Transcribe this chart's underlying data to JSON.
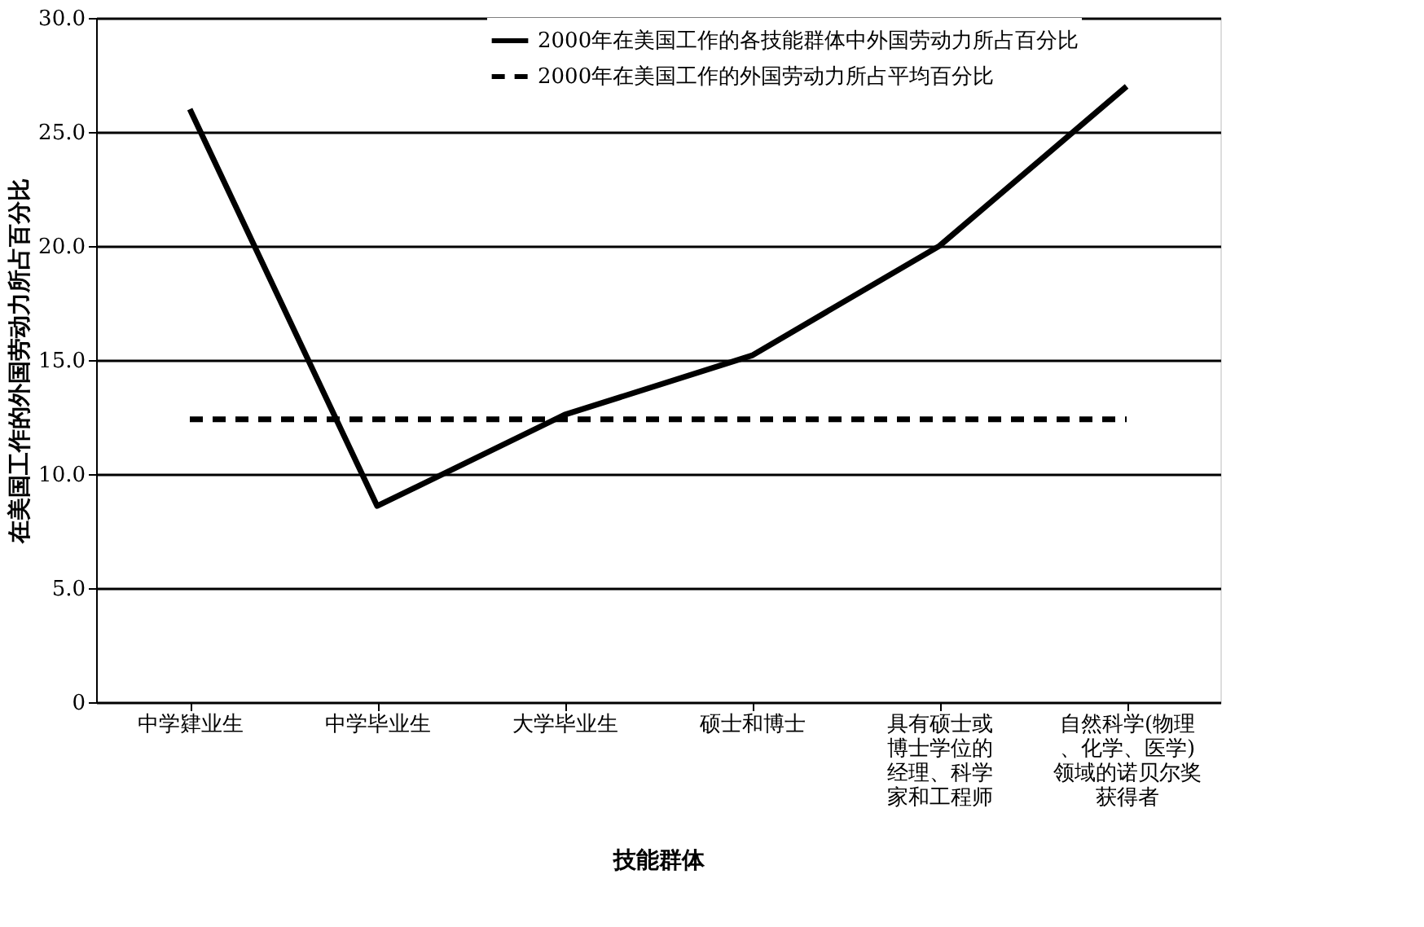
{
  "chart_data": {
    "type": "line",
    "xlabel": "技能群体",
    "ylabel": "在美国工作的外国劳动力所占百分比",
    "categories": [
      "中学肄业生",
      "中学毕业生",
      "大学毕业生",
      "硕士和博士",
      "具有硕士或博士学位的经理、科学家和工程师",
      "自然科学(物理、化学、医学)领域的诺贝尔奖获得者"
    ],
    "series": [
      {
        "name": "2000年在美国工作的各技能群体中外国劳动力所占百分比",
        "color": "#000000",
        "line_style": "solid",
        "values": [
          26.0,
          8.6,
          12.6,
          15.2,
          20.0,
          27.0
        ]
      },
      {
        "name": "2000年在美国工作的外国劳动力所占平均百分比",
        "color": "#000000",
        "line_style": "dashed",
        "values": [
          12.4,
          12.4,
          12.4,
          12.4,
          12.4,
          12.4
        ]
      }
    ],
    "ylim": [
      0,
      30
    ],
    "yticks": [
      {
        "value": 0,
        "label": "0"
      },
      {
        "value": 5,
        "label": "5.0"
      },
      {
        "value": 10,
        "label": "10.0"
      },
      {
        "value": 15,
        "label": "15.0"
      },
      {
        "value": 20,
        "label": "20.0"
      },
      {
        "value": 25,
        "label": "25.0"
      },
      {
        "value": 30,
        "label": "30.0"
      }
    ],
    "grid": "y",
    "legend": "top right",
    "marker": "none"
  }
}
